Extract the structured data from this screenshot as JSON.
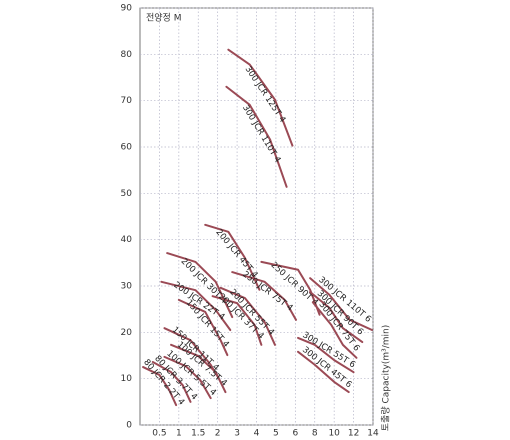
{
  "chart_data": {
    "type": "line",
    "y_label": "전양정 M",
    "x_label": "토출량 Capacity(m³/min)",
    "xlim": [
      0,
      14
    ],
    "xticks": [
      0.5,
      1,
      1.5,
      2,
      3,
      4,
      5,
      6,
      8,
      10,
      12,
      14
    ],
    "ylim": [
      0,
      90
    ],
    "yticks": [
      0,
      10,
      20,
      30,
      40,
      50,
      60,
      70,
      80,
      90
    ],
    "grid": true,
    "series": [
      {
        "name": "300 JCR 125T 4",
        "color": "#9b4a55",
        "x": [
          2.55,
          3.65,
          4.95,
          5.85
        ],
        "values": [
          81,
          77.8,
          70.2,
          60.3
        ]
      },
      {
        "name": "300 JCR 110T 4",
        "color": "#9b4a55",
        "x": [
          2.45,
          3.65,
          4.7,
          5.55
        ],
        "values": [
          73,
          69.1,
          61.6,
          51.4
        ]
      },
      {
        "name": "200 JCR 45T 4",
        "color": "#9b4a55",
        "x": [
          1.68,
          2.55,
          3.4,
          4.15
        ],
        "values": [
          43.2,
          41.7,
          36.1,
          29.2
        ]
      },
      {
        "name": "200 JCR 30T 4",
        "color": "#9b4a55",
        "x": [
          0.7,
          1.43,
          1.95,
          2.75
        ],
        "values": [
          37.1,
          35.2,
          30.9,
          23.3
        ]
      },
      {
        "name": "200 JCR 22T 4",
        "color": "#9b4a55",
        "x": [
          0.55,
          1.43,
          1.95,
          2.65
        ],
        "values": [
          30.9,
          29.1,
          24.8,
          20.5
        ]
      },
      {
        "name": "150 JCR 15T 4",
        "color": "#9b4a55",
        "x": [
          1,
          1.68,
          2.15,
          2.5
        ],
        "values": [
          27,
          24.4,
          18.3,
          15.1
        ]
      },
      {
        "name": "150 JCR 11T 4",
        "color": "#9b4a55",
        "x": [
          0.63,
          1.3,
          1.82,
          2.05
        ],
        "values": [
          20.9,
          18.3,
          13,
          10.1
        ]
      },
      {
        "name": "250 JCR 90T 4",
        "color": "#9b4a55",
        "x": [
          4.25,
          6.28,
          7.52,
          8.5
        ],
        "values": [
          35.2,
          33.5,
          29.2,
          23.8
        ]
      },
      {
        "name": "250 JCR 75T 4",
        "color": "#9b4a55",
        "x": [
          2.75,
          4.42,
          5.45,
          6.07
        ],
        "values": [
          33,
          30.9,
          27,
          22.7
        ]
      },
      {
        "name": "200 JCR 55T 4",
        "color": "#9b4a55",
        "x": [
          2.15,
          3.4,
          4.42,
          4.95
        ],
        "values": [
          29.6,
          27.4,
          22.2,
          17.3
        ]
      },
      {
        "name": "200 JCR 37T 4",
        "color": "#9b4a55",
        "x": [
          1.87,
          3,
          3.9,
          4.25
        ],
        "values": [
          27.8,
          26.3,
          21.6,
          17.3
        ]
      },
      {
        "name": "300 JCR 110T 6",
        "color": "#9b4a55",
        "x": [
          7.52,
          9.5,
          11.6,
          13.9
        ],
        "values": [
          31.7,
          28.1,
          22.7,
          20.5
        ]
      },
      {
        "name": "300 JCR 90T 6",
        "color": "#9b4a55",
        "x": [
          7.52,
          9.5,
          10.9,
          12.9
        ],
        "values": [
          28.7,
          25.3,
          20.9,
          17.9
        ]
      },
      {
        "name": "300 JCR 75T 6",
        "color": "#9b4a55",
        "x": [
          7.8,
          9.7,
          10.9,
          12.3
        ],
        "values": [
          26.5,
          21.6,
          17.3,
          14.5
        ]
      },
      {
        "name": "300 JCR 55T 6",
        "color": "#9b4a55",
        "x": [
          6.28,
          8,
          10,
          12
        ],
        "values": [
          18.8,
          17.3,
          14,
          11.4
        ]
      },
      {
        "name": "300 JCR 45T 6",
        "color": "#9b4a55",
        "x": [
          6.28,
          8,
          10,
          11.5
        ],
        "values": [
          15.8,
          13,
          9.3,
          7.1
        ]
      },
      {
        "name": "100 JCR 7.5T 4",
        "color": "#9b4a55",
        "x": [
          0.8,
          1.5,
          1.95,
          2.4
        ],
        "values": [
          17.3,
          14.9,
          11.4,
          7.1
        ]
      },
      {
        "name": "100 JCR 5.5T 4",
        "color": "#9b4a55",
        "x": [
          0.63,
          1.18,
          1.55,
          1.82
        ],
        "values": [
          14.7,
          12.7,
          9.7,
          5.8
        ]
      },
      {
        "name": "80 JCR 3.7T 4",
        "color": "#9b4a55",
        "x": [
          0.33,
          0.8,
          1.1,
          1.3
        ],
        "values": [
          13.6,
          11.4,
          8.6,
          5
        ]
      },
      {
        "name": "80 JCR 2.2T 4",
        "color": "#9b4a55",
        "x": [
          0.08,
          0.5,
          0.75,
          0.93
        ],
        "values": [
          12.5,
          10.8,
          7.6,
          4.3
        ]
      }
    ]
  }
}
